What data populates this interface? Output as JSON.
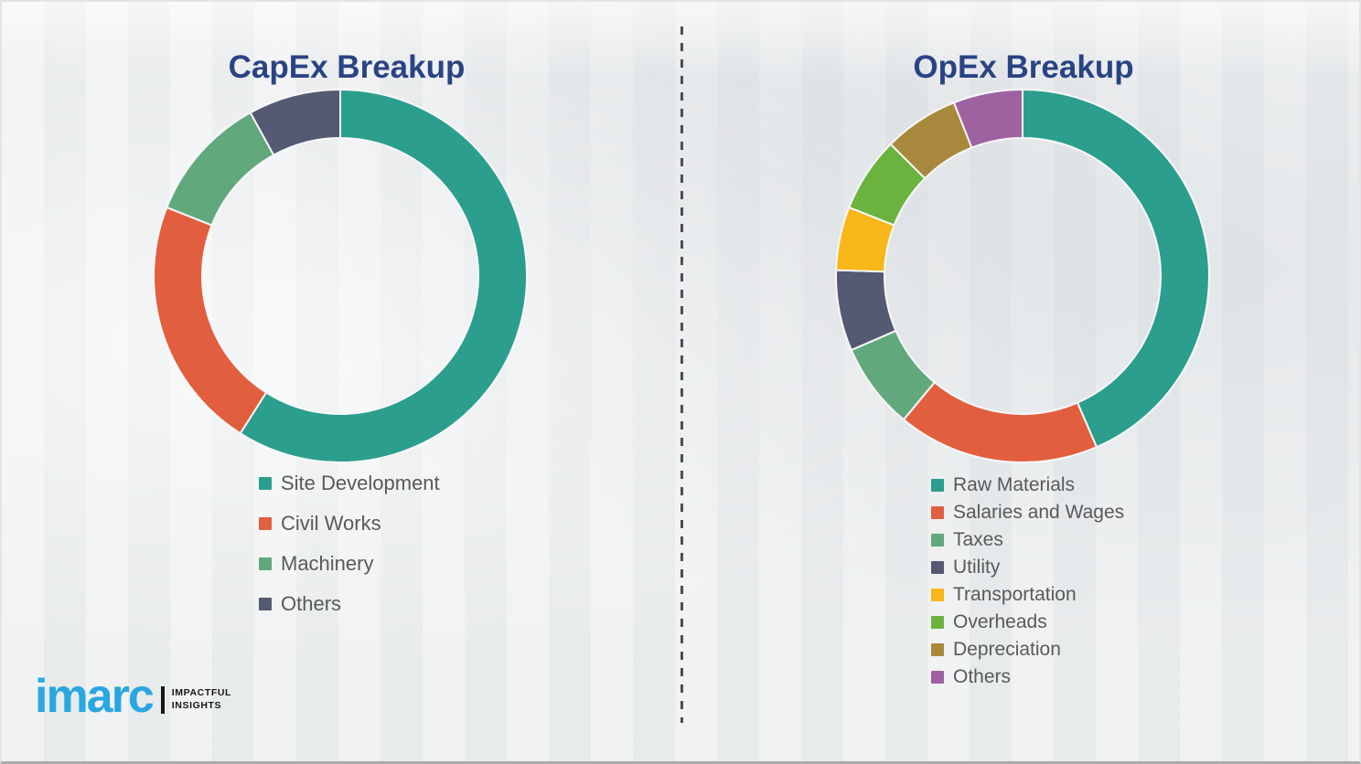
{
  "chart_data": [
    {
      "type": "pie",
      "donut": true,
      "title": "CapEx Breakup",
      "categories": [
        "Site Development",
        "Civil Works",
        "Machinery",
        "Others"
      ],
      "values": [
        59,
        22,
        11,
        8
      ],
      "values_note": "percent, estimated from arc angles; no numeric labels shown",
      "colors": [
        "#2b9e8e",
        "#e15f3f",
        "#62a87d",
        "#545a72"
      ],
      "start_angle_deg": 0,
      "direction": "clockwise",
      "legend_position": "below-left",
      "separator_color": "#f6f7f8"
    },
    {
      "type": "pie",
      "donut": true,
      "title": "OpEx Breakup",
      "categories": [
        "Raw Materials",
        "Salaries and Wages",
        "Taxes",
        "Utility",
        "Transportation",
        "Overheads",
        "Depreciation",
        "Others"
      ],
      "values": [
        43.5,
        17.5,
        7.5,
        7,
        5.5,
        6.5,
        6.5,
        6
      ],
      "values_note": "percent, estimated from arc angles; no numeric labels shown",
      "colors": [
        "#2b9e8e",
        "#e15f3f",
        "#62a87d",
        "#545a72",
        "#f7b718",
        "#69b33e",
        "#a8883c",
        "#9f62a0"
      ],
      "start_angle_deg": 0,
      "direction": "clockwise",
      "legend_position": "below-left",
      "separator_color": "#f6f7f8"
    }
  ],
  "branding": {
    "logo_text": "imarc",
    "tagline_line1": "IMPACTFUL",
    "tagline_line2": "INSIGHTS",
    "logo_color": "#2aa7e0"
  },
  "colors": {
    "background": "#edeff0",
    "title_text": "#2a4383",
    "legend_text": "#58595b",
    "divider": "#4d4f52"
  }
}
